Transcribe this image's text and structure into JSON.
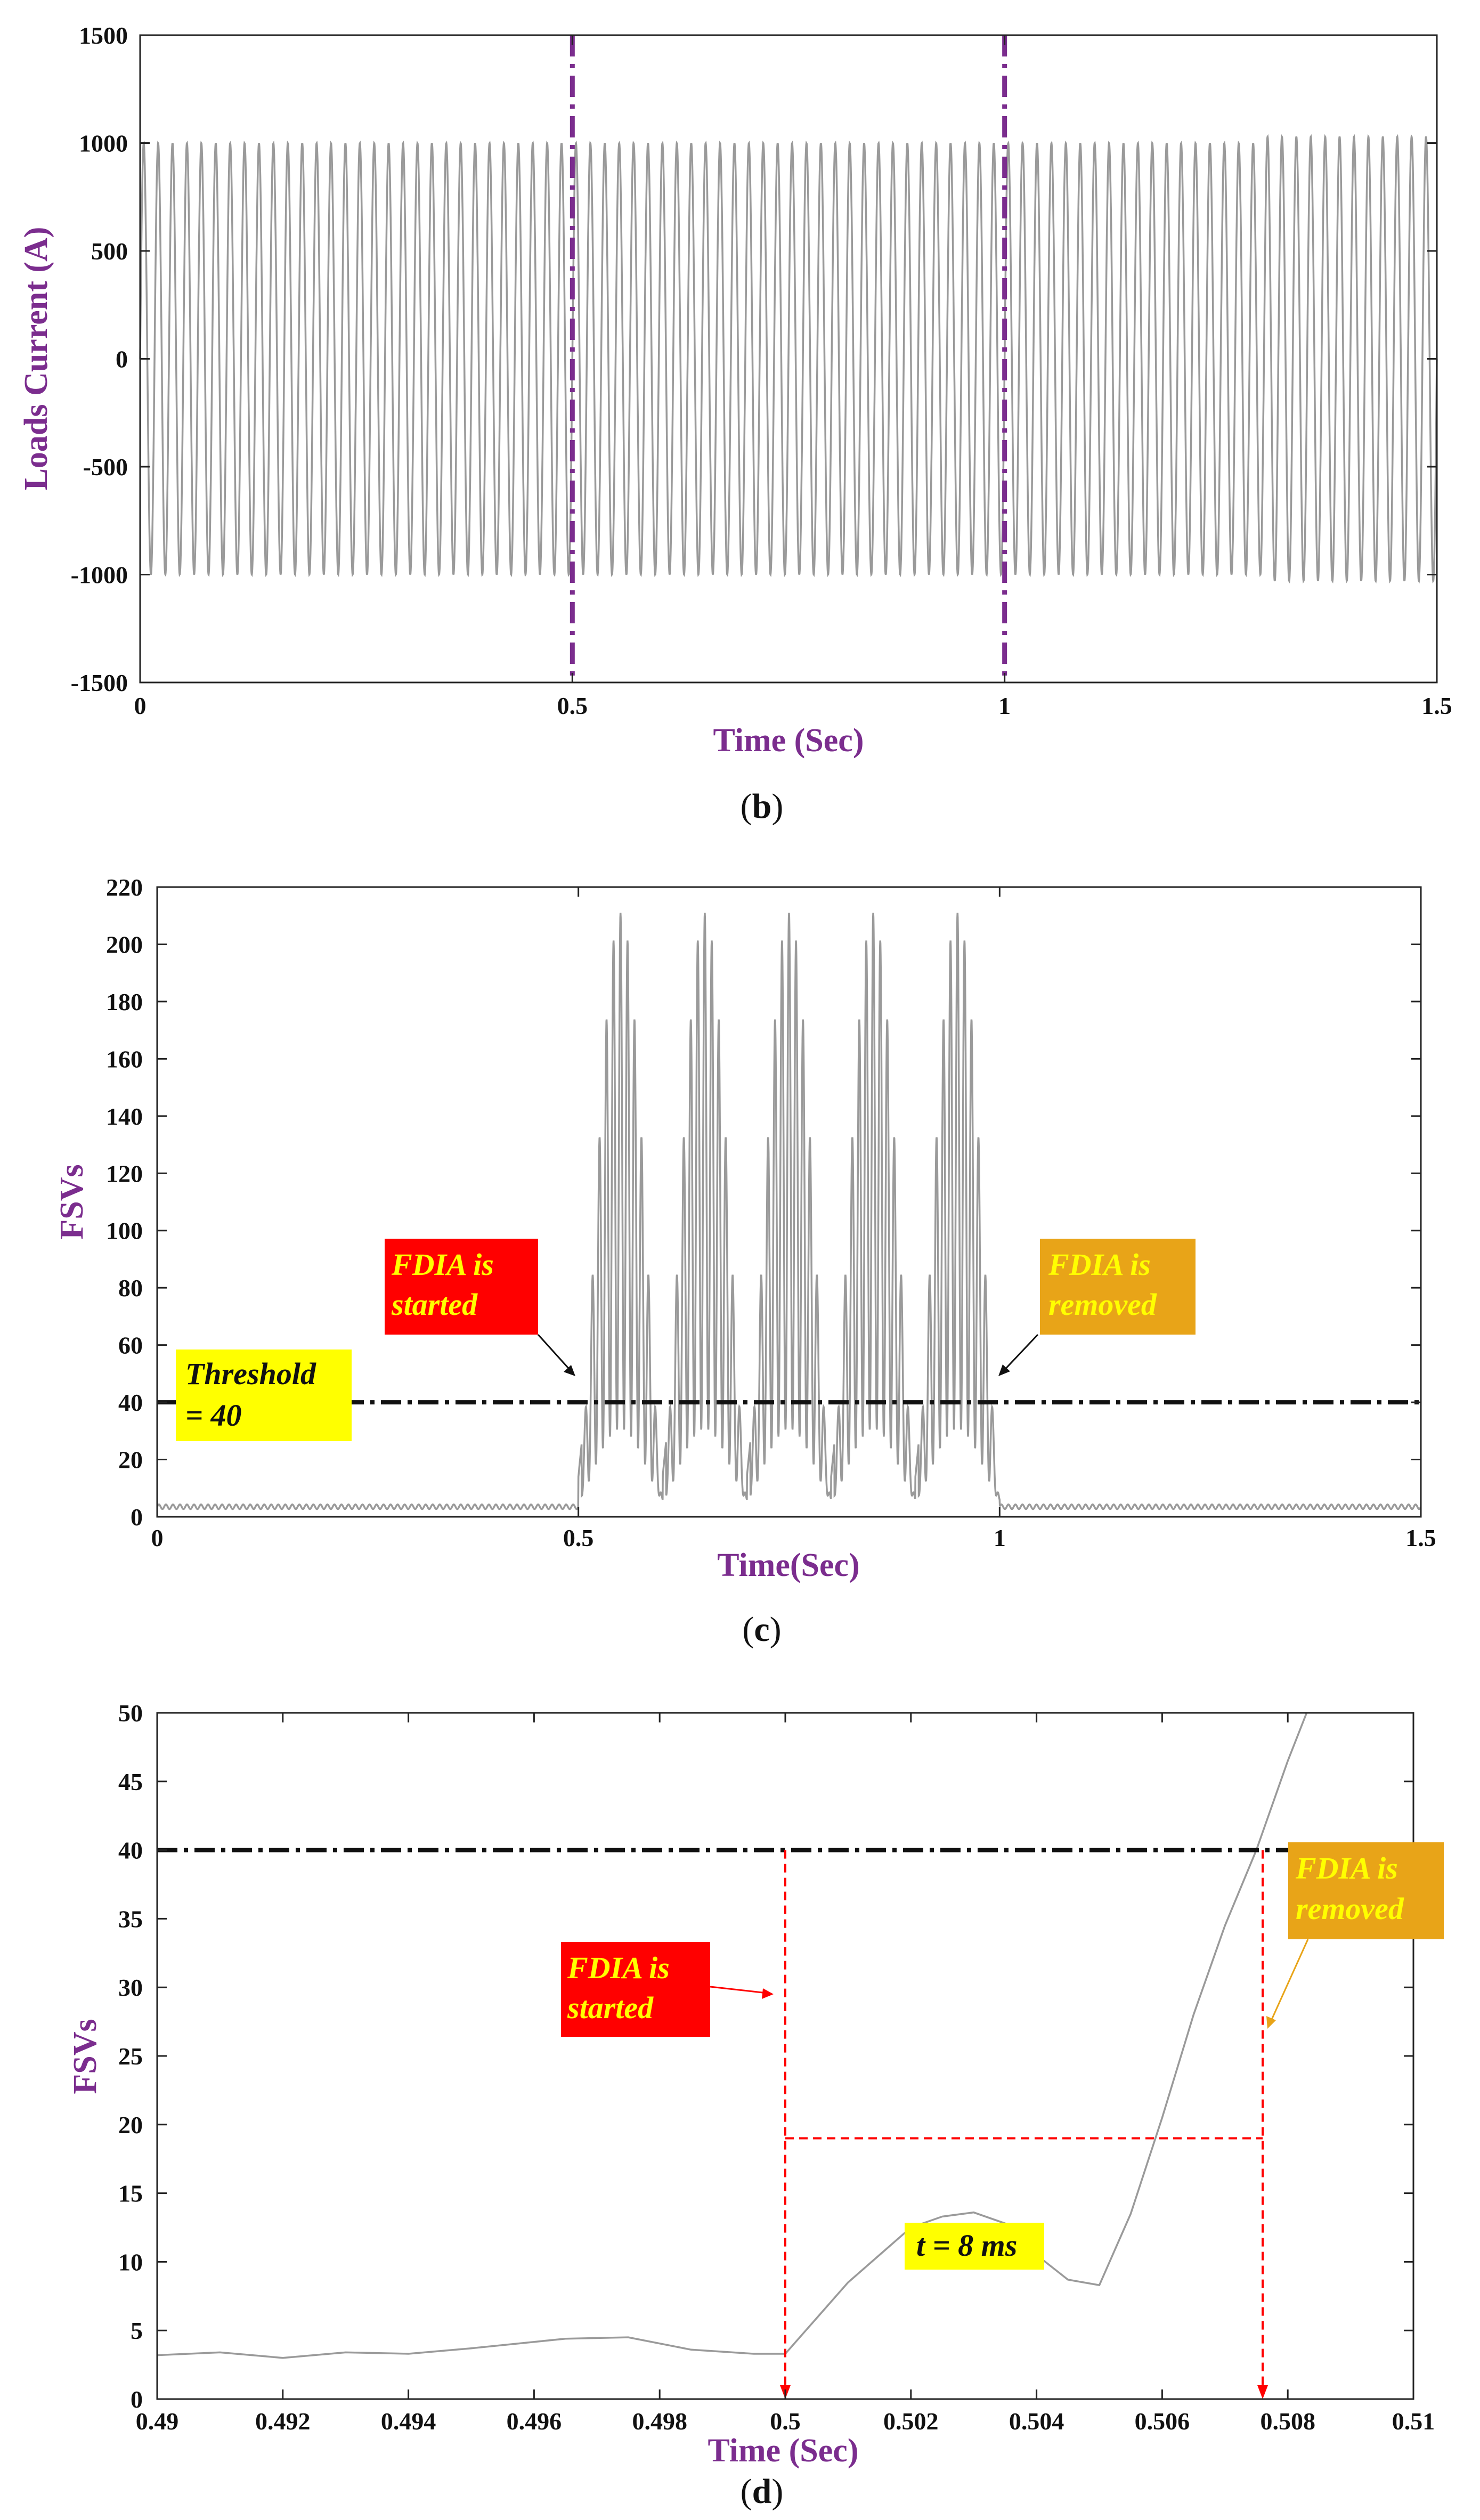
{
  "chart_data": [
    {
      "panel": "b",
      "type": "line",
      "caption": "b",
      "xlabel": "Time (Sec)",
      "ylabel": "Loads Current (A)",
      "xlim": [
        0,
        1.5
      ],
      "ylim": [
        -1500,
        1500
      ],
      "xticks": [
        0,
        0.5,
        1,
        1.5
      ],
      "xtick_labels": [
        "0",
        "0.5",
        "1",
        "1.5"
      ],
      "yticks": [
        -1500,
        -1000,
        -500,
        0,
        500,
        1000,
        1500
      ],
      "ytick_labels": [
        "-1500",
        "-1000",
        "-500",
        "0",
        "500",
        "1000",
        "1500"
      ],
      "series": [
        {
          "name": "Loads current",
          "signal": "sinusoid",
          "frequency_hz": 60,
          "amplitude": 1000,
          "amplitude_after_1_3s": 1030,
          "color": "#9a9a9a"
        }
      ],
      "vlines": [
        {
          "x": 0.5,
          "color": "#7b2d8e",
          "style": "dash-dot"
        },
        {
          "x": 1,
          "color": "#7b2d8e",
          "style": "dash-dot"
        }
      ]
    },
    {
      "panel": "c",
      "type": "line",
      "caption": "c",
      "xlabel": "Time(Sec)",
      "ylabel": "FSVs",
      "xlim": [
        0,
        1.5
      ],
      "ylim": [
        0,
        220
      ],
      "xticks": [
        0,
        0.5,
        1,
        1.5
      ],
      "xtick_labels": [
        "0",
        "0.5",
        "1",
        "1.5"
      ],
      "yticks": [
        0,
        20,
        40,
        60,
        80,
        100,
        120,
        140,
        160,
        180,
        200,
        220
      ],
      "ytick_labels": [
        "0",
        "20",
        "40",
        "60",
        "80",
        "100",
        "120",
        "140",
        "160",
        "180",
        "200",
        "220"
      ],
      "series": [
        {
          "name": "FSVs",
          "baseline": 3.5,
          "attack_start": 0.5,
          "attack_end": 1.0,
          "peak": 211,
          "bursts": 5,
          "color": "#9a9a9a"
        }
      ],
      "threshold": {
        "y": 40,
        "color": "#111111",
        "style": "dash-dot"
      },
      "annotations": [
        {
          "id": "threshold",
          "lines": [
            "Threshold",
            "= 40"
          ],
          "box_color": "#ffff00",
          "text_color": "#111111"
        },
        {
          "id": "started",
          "lines": [
            "FDIA is",
            "started"
          ],
          "box_color": "#ff0000",
          "text_color": "#ffff00",
          "arrow_to": [
            0.5,
            40
          ]
        },
        {
          "id": "removed",
          "lines": [
            "FDIA is",
            "removed"
          ],
          "box_color": "#e8a418",
          "text_color": "#ffff00",
          "arrow_to": [
            1.0,
            40
          ]
        }
      ]
    },
    {
      "panel": "d",
      "type": "line",
      "caption": "d",
      "xlabel": "Time (Sec)",
      "ylabel": "FSVs",
      "xlim": [
        0.49,
        0.51
      ],
      "ylim": [
        0,
        50
      ],
      "xticks": [
        0.49,
        0.492,
        0.494,
        0.496,
        0.498,
        0.5,
        0.502,
        0.504,
        0.506,
        0.508,
        0.51
      ],
      "xtick_labels": [
        "0.49",
        "0.492",
        "0.494",
        "0.496",
        "0.498",
        "0.5",
        "0.502",
        "0.504",
        "0.506",
        "0.508",
        "0.51"
      ],
      "yticks": [
        0,
        5,
        10,
        15,
        20,
        25,
        30,
        35,
        40,
        45,
        50
      ],
      "ytick_labels": [
        "0",
        "5",
        "10",
        "15",
        "20",
        "25",
        "30",
        "35",
        "40",
        "45",
        "50"
      ],
      "series": [
        {
          "name": "FSVs",
          "color": "#9a9a9a",
          "x": [
            0.49,
            0.491,
            0.492,
            0.493,
            0.494,
            0.495,
            0.4965,
            0.4975,
            0.4985,
            0.4995,
            0.5,
            0.501,
            0.502,
            0.5025,
            0.503,
            0.5035,
            0.504,
            0.5045,
            0.505,
            0.5055,
            0.506,
            0.5065,
            0.507,
            0.5075,
            0.508,
            0.5083
          ],
          "y": [
            3.2,
            3.4,
            3.0,
            3.4,
            3.3,
            3.7,
            4.4,
            4.5,
            3.6,
            3.3,
            3.3,
            8.5,
            12.5,
            13.3,
            13.6,
            12.8,
            10.5,
            8.7,
            8.3,
            13.5,
            20.5,
            28.0,
            34.5,
            40.0,
            46.5,
            50.0
          ]
        }
      ],
      "threshold": {
        "y": 40,
        "color": "#111111",
        "style": "dash-dot"
      },
      "markers": [
        {
          "type": "vline",
          "x": 0.5,
          "from": 40,
          "to": 0,
          "color": "#ff0000"
        },
        {
          "type": "vline",
          "x": 0.5076,
          "from": 40,
          "to": 0,
          "color": "#ff0000"
        },
        {
          "type": "hline",
          "y": 19,
          "from": 0.5,
          "to": 0.5076,
          "color": "#ff0000"
        }
      ],
      "annotations": [
        {
          "id": "started",
          "lines": [
            "FDIA is",
            "started"
          ],
          "box_color": "#ff0000",
          "text_color": "#ffff00",
          "arrow_to": [
            0.5,
            28.3
          ]
        },
        {
          "id": "removed",
          "lines": [
            "FDIA is",
            "removed"
          ],
          "box_color": "#e8a418",
          "text_color": "#ffff00",
          "arrow_to": [
            0.5076,
            24
          ]
        },
        {
          "id": "delay",
          "lines": [
            "t = 8 ms"
          ],
          "box_color": "#ffff00",
          "text_color": "#111111"
        }
      ]
    }
  ]
}
